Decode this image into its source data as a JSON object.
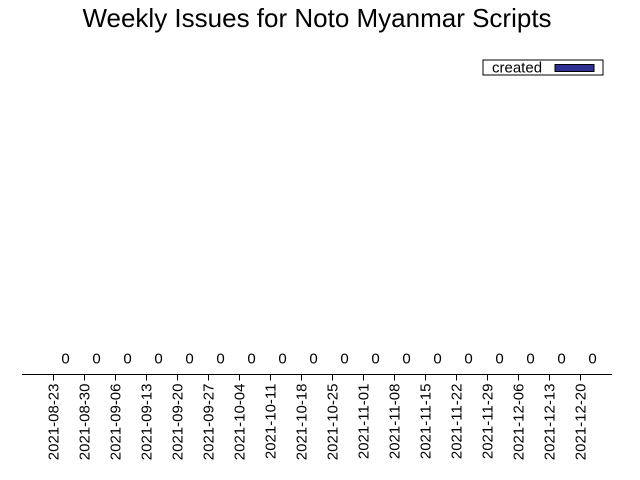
{
  "chart_data": {
    "type": "bar",
    "title": "Weekly Issues for Noto Myanmar Scripts",
    "xlabel": "",
    "ylabel": "",
    "categories": [
      "2021-08-23",
      "2021-08-30",
      "2021-09-06",
      "2021-09-13",
      "2021-09-20",
      "2021-09-27",
      "2021-10-04",
      "2021-10-11",
      "2021-10-18",
      "2021-10-25",
      "2021-11-01",
      "2021-11-08",
      "2021-11-15",
      "2021-11-22",
      "2021-11-29",
      "2021-12-06",
      "2021-12-13",
      "2021-12-20"
    ],
    "series": [
      {
        "name": "created",
        "color": "#2e3192",
        "values": [
          0,
          0,
          0,
          0,
          0,
          0,
          0,
          0,
          0,
          0,
          0,
          0,
          0,
          0,
          0,
          0,
          0,
          0
        ]
      }
    ],
    "ylim": [
      0,
      1
    ],
    "grid": false,
    "legend_position": "top-right"
  }
}
